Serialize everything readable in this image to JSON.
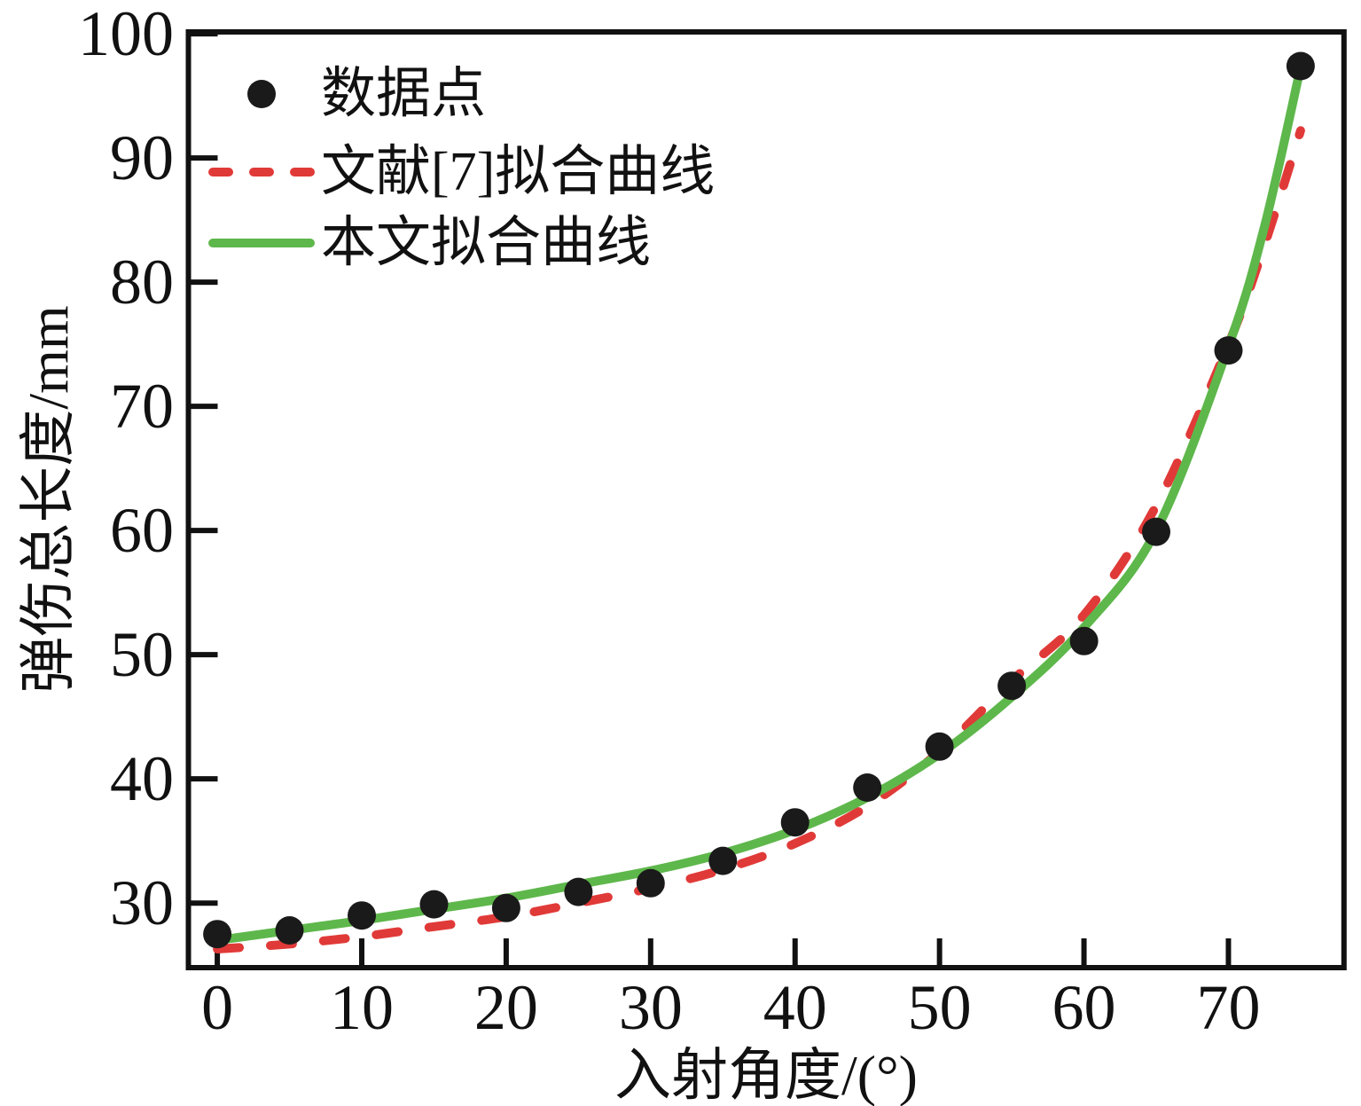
{
  "figure": {
    "background": "#ffffff",
    "frame_color": "#111111",
    "text_color": "#111111"
  },
  "legend": {
    "position": "upper-left",
    "items": [
      {
        "label": "数据点",
        "marker": "dot",
        "color": "#1a1a1a"
      },
      {
        "label": "文献[7]拟合曲线",
        "marker": "dashed-line",
        "color": "#e03a38"
      },
      {
        "label": "本文拟合曲线",
        "marker": "solid-line",
        "color": "#5eb74b"
      }
    ]
  },
  "chart_data": {
    "type": "scatter",
    "title": "",
    "xlabel": "入射角度/(°)",
    "ylabel": "弹伤总长度/mm",
    "xlim": [
      -2,
      78
    ],
    "ylim": [
      24.8,
      100.15
    ],
    "x_ticks": [
      0,
      10,
      20,
      30,
      40,
      50,
      60,
      70
    ],
    "y_ticks": [
      30,
      40,
      50,
      60,
      70,
      80,
      90,
      100
    ],
    "grid": false,
    "legend_position": "upper-left",
    "series": [
      {
        "name": "数据点",
        "type": "scatter",
        "color": "#1a1a1a",
        "marker_radius": 16,
        "x": [
          0,
          5,
          10,
          15,
          20,
          25,
          30,
          35,
          40,
          45,
          50,
          55,
          60,
          65,
          70,
          75
        ],
        "y": [
          27.5,
          27.8,
          29.0,
          29.9,
          29.6,
          30.9,
          31.6,
          33.4,
          36.5,
          39.3,
          42.6,
          47.5,
          51.1,
          59.9,
          74.5,
          97.4
        ]
      },
      {
        "name": "文献[7]拟合曲线",
        "type": "line",
        "line_style": "dashed",
        "color": "#e03a38",
        "line_width": 10,
        "x": [
          0,
          5,
          10,
          15,
          20,
          25,
          30,
          35,
          40,
          45,
          50,
          55,
          60,
          65,
          70,
          72.5,
          75
        ],
        "y": [
          26.3,
          26.7,
          27.3,
          28.1,
          28.9,
          30.0,
          31.2,
          32.7,
          34.8,
          37.8,
          42.2,
          47.9,
          53.2,
          62.0,
          75.0,
          83.0,
          92.2
        ]
      },
      {
        "name": "本文拟合曲线",
        "type": "line",
        "line_style": "solid",
        "color": "#5eb74b",
        "line_width": 10,
        "x": [
          0,
          5,
          10,
          15,
          20,
          25,
          30,
          35,
          40,
          45,
          50,
          55,
          60,
          65,
          70,
          72.5,
          75
        ],
        "y": [
          27.0,
          27.8,
          28.6,
          29.5,
          30.4,
          31.5,
          32.6,
          34.0,
          35.9,
          38.5,
          42.0,
          46.6,
          52.2,
          60.0,
          74.8,
          84.5,
          97.3
        ]
      }
    ]
  }
}
